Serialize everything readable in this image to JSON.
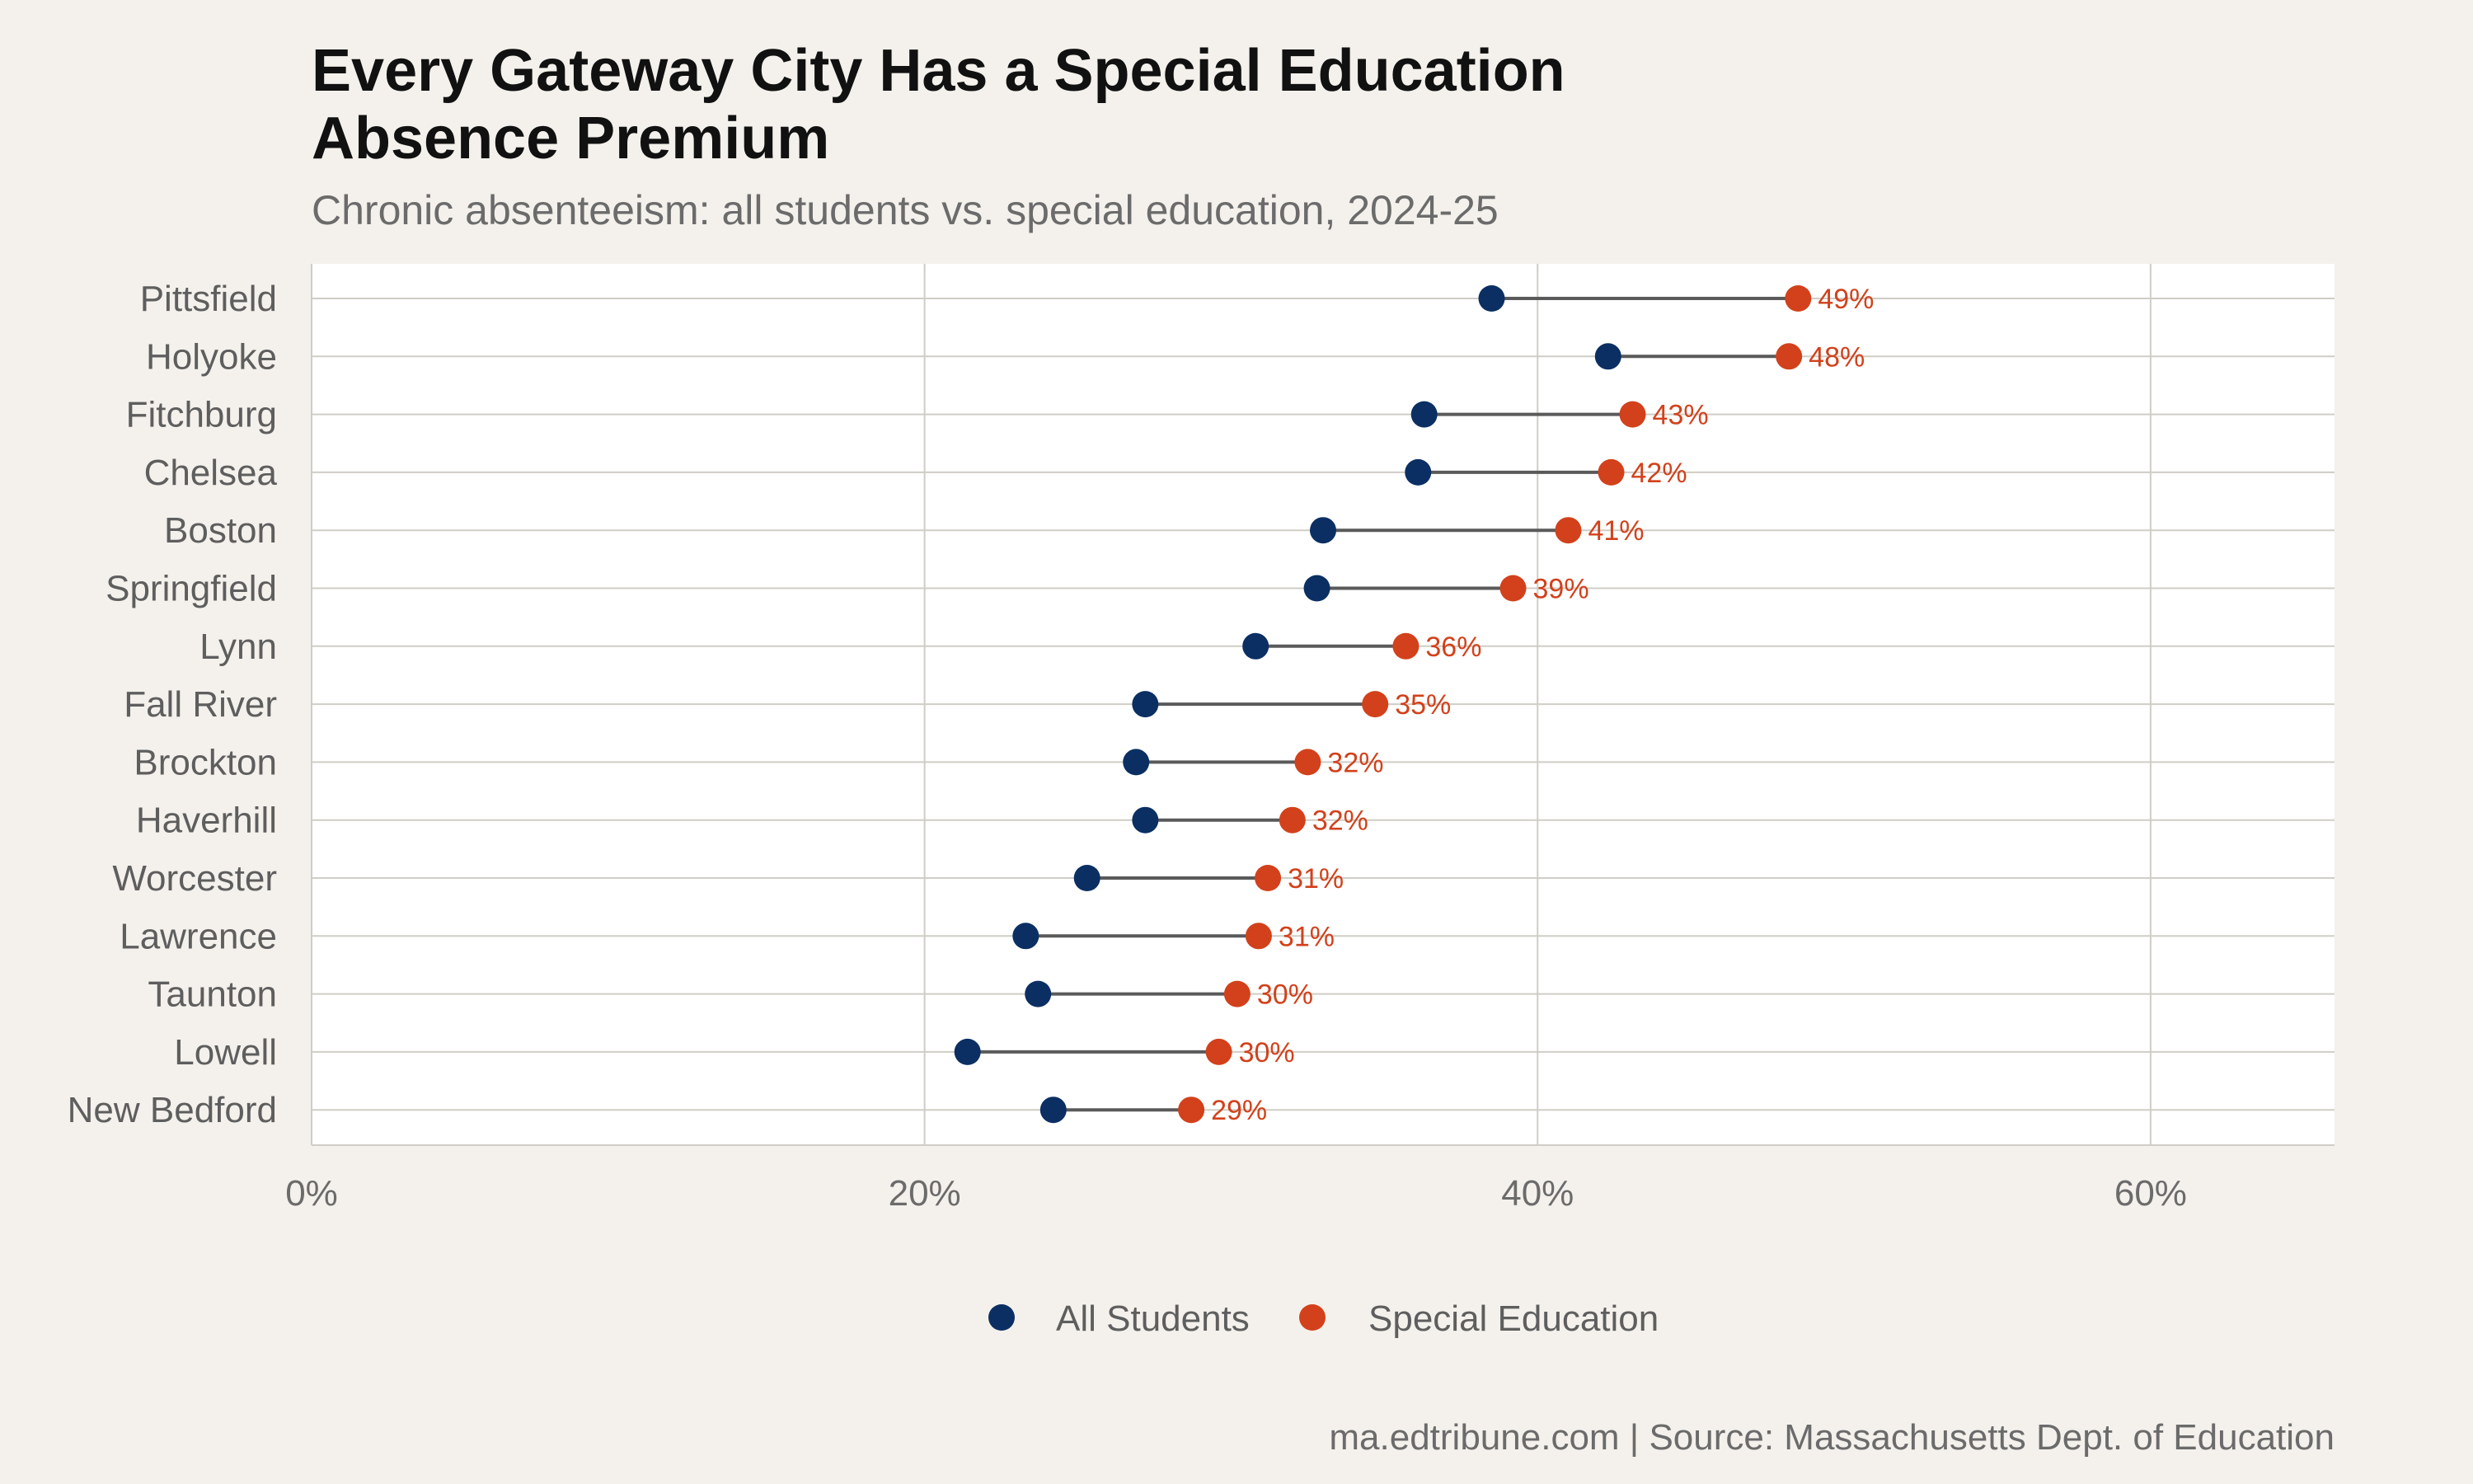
{
  "colors": {
    "background": "#f4f1ec",
    "panel": "#ffffff",
    "grid": "#cfcdc6",
    "connector": "#5a5a5a",
    "all_students": "#0b2f63",
    "special_education": "#d2411b"
  },
  "chart_data": {
    "type": "dumbbell",
    "title_lines": [
      "Every Gateway City Has a Special Education",
      "Absence Premium"
    ],
    "subtitle": "Chronic absenteeism: all students vs. special education, 2024-25",
    "caption": "ma.edtribune.com | Source: Massachusetts Dept. of Education",
    "xlim": [
      0,
      66
    ],
    "x_ticks": [
      0,
      20,
      40,
      60
    ],
    "x_tick_labels": [
      "0%",
      "20%",
      "40%",
      "60%"
    ],
    "grid": true,
    "legend_position": "bottom",
    "categories": [
      "Pittsfield",
      "Holyoke",
      "Fitchburg",
      "Chelsea",
      "Boston",
      "Springfield",
      "Lynn",
      "Fall River",
      "Brockton",
      "Haverhill",
      "Worcester",
      "Lawrence",
      "Taunton",
      "Lowell",
      "New Bedford"
    ],
    "series": [
      {
        "name": "All Students",
        "color_key": "all_students",
        "values": [
          38.5,
          42.3,
          36.3,
          36.1,
          33.0,
          32.8,
          30.8,
          27.2,
          26.9,
          27.2,
          25.3,
          23.3,
          23.7,
          21.4,
          24.2
        ]
      },
      {
        "name": "Special Education",
        "color_key": "special_education",
        "values": [
          48.5,
          48.2,
          43.1,
          42.4,
          41.0,
          39.2,
          35.7,
          34.7,
          32.5,
          32.0,
          31.2,
          30.9,
          30.2,
          29.6,
          28.7
        ]
      }
    ],
    "value_labels": [
      "49%",
      "48%",
      "43%",
      "42%",
      "41%",
      "39%",
      "36%",
      "35%",
      "32%",
      "32%",
      "31%",
      "31%",
      "30%",
      "30%",
      "29%"
    ]
  }
}
